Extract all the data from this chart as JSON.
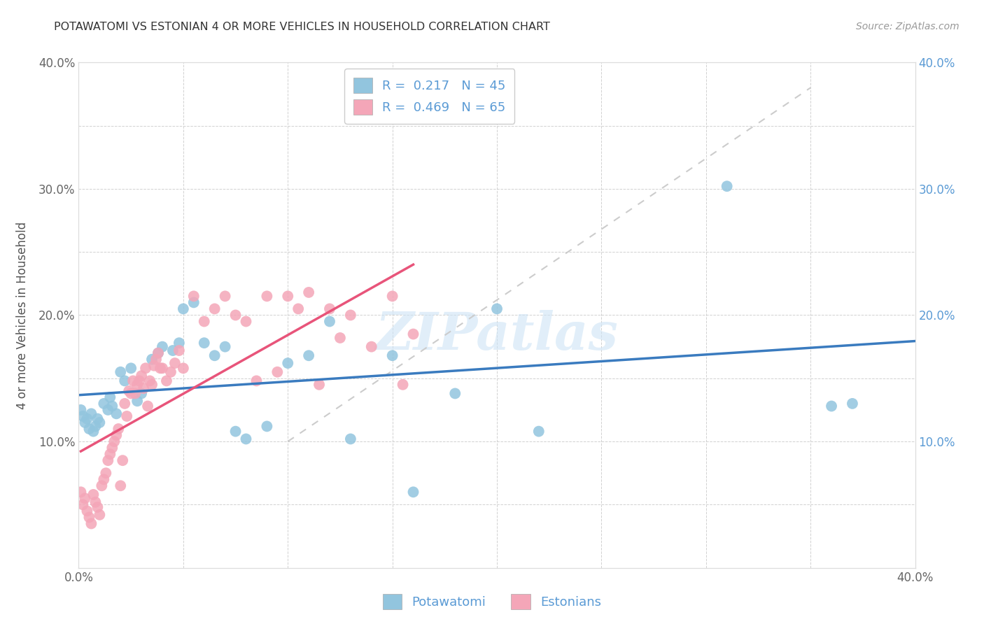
{
  "title": "POTAWATOMI VS ESTONIAN 4 OR MORE VEHICLES IN HOUSEHOLD CORRELATION CHART",
  "source": "Source: ZipAtlas.com",
  "ylabel": "4 or more Vehicles in Household",
  "watermark": "ZIPatlas",
  "xlim": [
    0.0,
    0.4
  ],
  "ylim": [
    0.0,
    0.4
  ],
  "xticks": [
    0.0,
    0.05,
    0.1,
    0.15,
    0.2,
    0.25,
    0.3,
    0.35,
    0.4
  ],
  "yticks": [
    0.0,
    0.05,
    0.1,
    0.15,
    0.2,
    0.25,
    0.3,
    0.35,
    0.4
  ],
  "potawatomi_R": 0.217,
  "potawatomi_N": 45,
  "estonian_R": 0.469,
  "estonian_N": 65,
  "blue_color": "#92c5de",
  "pink_color": "#f4a6b8",
  "blue_line_color": "#3a7bbf",
  "pink_line_color": "#e8547a",
  "gray_dash_color": "#cccccc",
  "legend_label_blue": "Potawatomi",
  "legend_label_pink": "Estonians",
  "potawatomi_x": [
    0.001,
    0.002,
    0.003,
    0.004,
    0.005,
    0.006,
    0.007,
    0.008,
    0.009,
    0.01,
    0.012,
    0.014,
    0.015,
    0.016,
    0.018,
    0.02,
    0.022,
    0.025,
    0.028,
    0.03,
    0.035,
    0.038,
    0.04,
    0.045,
    0.048,
    0.05,
    0.055,
    0.06,
    0.065,
    0.07,
    0.075,
    0.08,
    0.09,
    0.1,
    0.11,
    0.12,
    0.13,
    0.15,
    0.16,
    0.18,
    0.2,
    0.22,
    0.31,
    0.36,
    0.37
  ],
  "potawatomi_y": [
    0.125,
    0.12,
    0.115,
    0.118,
    0.11,
    0.122,
    0.108,
    0.112,
    0.118,
    0.115,
    0.13,
    0.125,
    0.135,
    0.128,
    0.122,
    0.155,
    0.148,
    0.158,
    0.132,
    0.138,
    0.165,
    0.17,
    0.175,
    0.172,
    0.178,
    0.205,
    0.21,
    0.178,
    0.168,
    0.175,
    0.108,
    0.102,
    0.112,
    0.162,
    0.168,
    0.195,
    0.102,
    0.168,
    0.06,
    0.138,
    0.205,
    0.108,
    0.302,
    0.128,
    0.13
  ],
  "estonian_x": [
    0.001,
    0.002,
    0.003,
    0.004,
    0.005,
    0.006,
    0.007,
    0.008,
    0.009,
    0.01,
    0.011,
    0.012,
    0.013,
    0.014,
    0.015,
    0.016,
    0.017,
    0.018,
    0.019,
    0.02,
    0.021,
    0.022,
    0.023,
    0.024,
    0.025,
    0.026,
    0.027,
    0.028,
    0.029,
    0.03,
    0.031,
    0.032,
    0.033,
    0.034,
    0.035,
    0.036,
    0.037,
    0.038,
    0.039,
    0.04,
    0.042,
    0.044,
    0.046,
    0.048,
    0.05,
    0.055,
    0.06,
    0.065,
    0.07,
    0.075,
    0.08,
    0.085,
    0.09,
    0.095,
    0.1,
    0.105,
    0.11,
    0.115,
    0.12,
    0.125,
    0.13,
    0.14,
    0.15,
    0.155,
    0.16
  ],
  "estonian_y": [
    0.06,
    0.05,
    0.055,
    0.045,
    0.04,
    0.035,
    0.058,
    0.052,
    0.048,
    0.042,
    0.065,
    0.07,
    0.075,
    0.085,
    0.09,
    0.095,
    0.1,
    0.105,
    0.11,
    0.065,
    0.085,
    0.13,
    0.12,
    0.14,
    0.138,
    0.148,
    0.138,
    0.145,
    0.148,
    0.152,
    0.142,
    0.158,
    0.128,
    0.148,
    0.145,
    0.16,
    0.165,
    0.17,
    0.158,
    0.158,
    0.148,
    0.155,
    0.162,
    0.172,
    0.158,
    0.215,
    0.195,
    0.205,
    0.215,
    0.2,
    0.195,
    0.148,
    0.215,
    0.155,
    0.215,
    0.205,
    0.218,
    0.145,
    0.205,
    0.182,
    0.2,
    0.175,
    0.215,
    0.145,
    0.185
  ]
}
